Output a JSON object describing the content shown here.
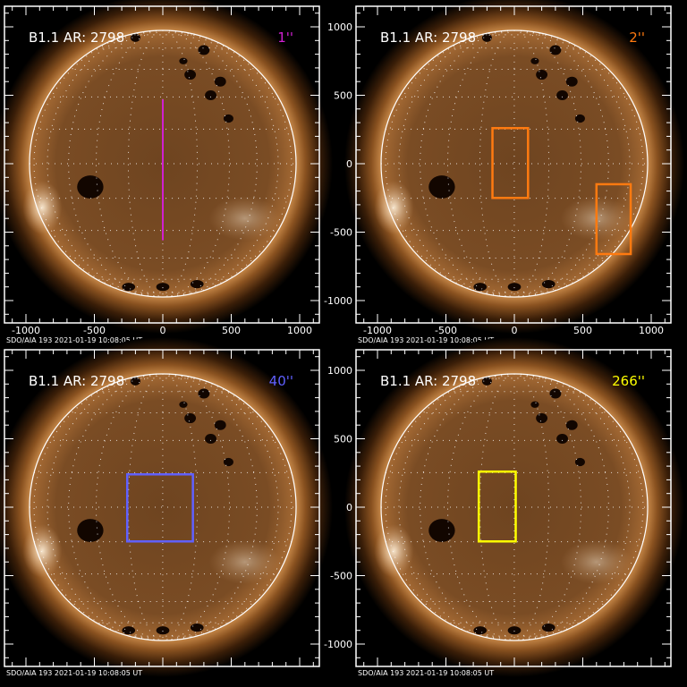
{
  "panels": [
    {
      "label": "B1.1 AR: 2798",
      "resolution": "1''",
      "res_color": "#d020d0",
      "marker": {
        "type": "line",
        "x": 0,
        "y1": 470,
        "y2": -560
      }
    },
    {
      "label": "B1.1 AR: 2798",
      "resolution": "2''",
      "res_color": "#ff7a10",
      "marker": {
        "type": "boxes",
        "boxes": [
          [
            -160,
            260,
            100,
            -250
          ],
          [
            600,
            -150,
            850,
            -660
          ]
        ]
      }
    },
    {
      "label": "B1.1 AR: 2798",
      "resolution": "40''",
      "res_color": "#6060ff",
      "marker": {
        "type": "boxes",
        "boxes": [
          [
            -260,
            240,
            220,
            -250
          ]
        ]
      }
    },
    {
      "label": "B1.1 AR: 2798",
      "resolution": "266''",
      "res_color": "#ffff00",
      "marker": {
        "type": "boxes",
        "boxes": [
          [
            -260,
            260,
            10,
            -250
          ]
        ]
      }
    }
  ],
  "footer": "SDO/AIA 193   2021-01-19 10:08:05 UT",
  "x_ticks": [
    "-1000",
    "-500",
    "0",
    "500",
    "1000"
  ],
  "y_ticks": [
    "1000",
    "500",
    "0",
    "-500",
    "-1000"
  ],
  "axis_range_arcsec": [
    -1150,
    1150
  ]
}
